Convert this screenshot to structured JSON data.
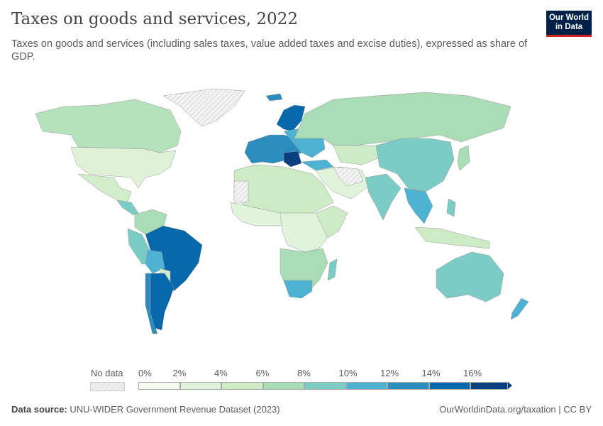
{
  "header": {
    "title": "Taxes on goods and services, 2022",
    "subtitle": "Taxes on goods and services (including sales taxes, value added taxes and excise duties), expressed as share of GDP.",
    "logo_line1": "Our World",
    "logo_line2": "in Data"
  },
  "legend": {
    "no_data_label": "No data",
    "ticks": [
      "0%",
      "2%",
      "4%",
      "6%",
      "8%",
      "10%",
      "12%",
      "14%",
      "16%"
    ],
    "colors": [
      "#f7fcf0",
      "#e0f3db",
      "#cdebc5",
      "#a8ddb5",
      "#7bccc4",
      "#4eb3d3",
      "#2b8cbe",
      "#0868ac",
      "#084081"
    ],
    "no_data_color": "#eeeeee"
  },
  "footer": {
    "source_label": "Data source:",
    "source_text": "UNU-WIDER Government Revenue Dataset (2023)",
    "link": "OurWorldinData.org/taxation | CC BY"
  }
}
